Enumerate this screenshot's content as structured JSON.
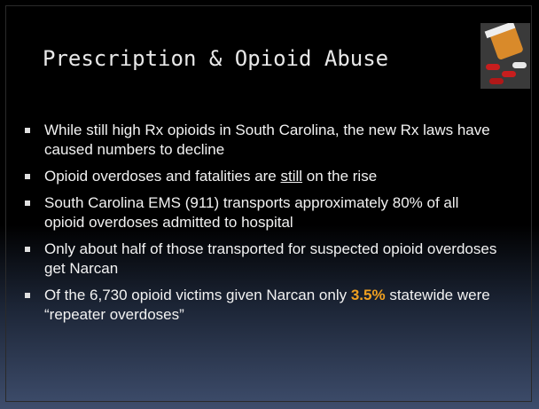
{
  "title": "Prescription & Opioid Abuse",
  "bullets": [
    [
      "While still high Rx opioids in South Carolina, the new Rx laws have caused numbers to decline"
    ],
    [
      "Opioid overdoses and fatalities are ",
      "still",
      " on the rise"
    ],
    [
      "South Carolina EMS (911) transports approximately 80% of all opioid overdoses admitted to hospital"
    ],
    [
      "Only about half of those transported for suspected opioid overdoses get Narcan"
    ],
    [
      "Of the 6,730 opioid victims given Narcan only ",
      "3.5%",
      " statewide were “repeater overdoses”"
    ]
  ]
}
